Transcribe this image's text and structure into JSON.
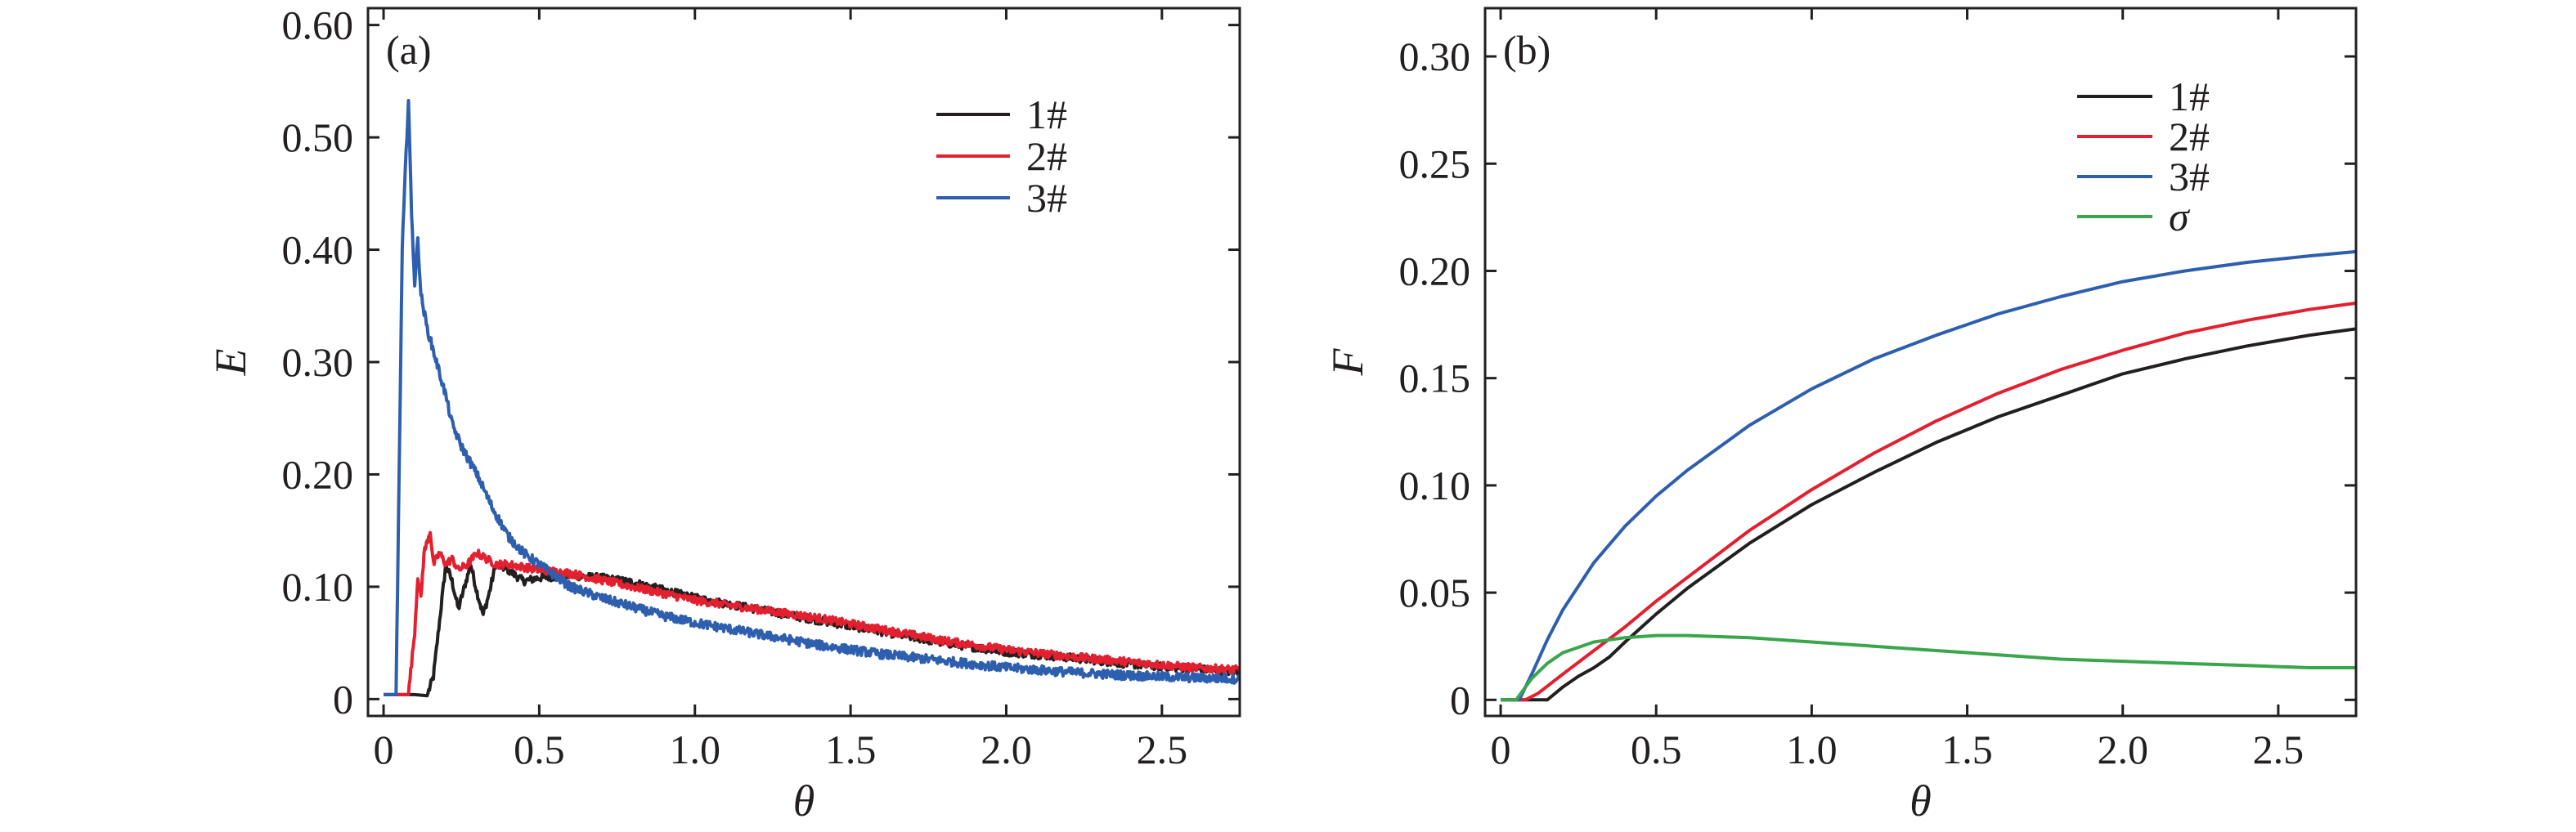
{
  "chart_data": [
    {
      "type": "line",
      "panel_label": "(a)",
      "xlabel": "θ",
      "ylabel": "E",
      "xlim": [
        -0.05,
        2.75
      ],
      "ylim": [
        -0.015,
        0.615
      ],
      "xticks": [
        0,
        0.5,
        1.0,
        1.5,
        2.0,
        2.5
      ],
      "xtick_labels": [
        "0",
        "0.5",
        "1.0",
        "1.5",
        "2.0",
        "2.5"
      ],
      "yticks": [
        0,
        0.1,
        0.2,
        0.3,
        0.4,
        0.5,
        0.6
      ],
      "ytick_labels": [
        "0",
        "0.10",
        "0.20",
        "0.30",
        "0.40",
        "0.50",
        "0.60"
      ],
      "grid": false,
      "legend_position": "top-right",
      "series": [
        {
          "name": "1#",
          "color": "#231f20",
          "noise": 0.0035,
          "points": [
            [
              0,
              0.004
            ],
            [
              0.1,
              0.004
            ],
            [
              0.14,
              0.003
            ],
            [
              0.16,
              0.02
            ],
            [
              0.18,
              0.07
            ],
            [
              0.2,
              0.12
            ],
            [
              0.22,
              0.105
            ],
            [
              0.24,
              0.08
            ],
            [
              0.26,
              0.1
            ],
            [
              0.28,
              0.12
            ],
            [
              0.3,
              0.095
            ],
            [
              0.32,
              0.075
            ],
            [
              0.34,
              0.095
            ],
            [
              0.36,
              0.12
            ],
            [
              0.4,
              0.115
            ],
            [
              0.45,
              0.105
            ],
            [
              0.5,
              0.108
            ],
            [
              0.6,
              0.11
            ],
            [
              0.7,
              0.108
            ],
            [
              0.8,
              0.104
            ],
            [
              0.9,
              0.097
            ],
            [
              1.0,
              0.09
            ],
            [
              1.2,
              0.08
            ],
            [
              1.4,
              0.07
            ],
            [
              1.6,
              0.06
            ],
            [
              1.8,
              0.05
            ],
            [
              2.0,
              0.042
            ],
            [
              2.2,
              0.037
            ],
            [
              2.4,
              0.031
            ],
            [
              2.6,
              0.027
            ],
            [
              2.75,
              0.024
            ]
          ]
        },
        {
          "name": "2#",
          "color": "#e2202f",
          "noise": 0.0035,
          "points": [
            [
              0,
              0.004
            ],
            [
              0.08,
              0.004
            ],
            [
              0.1,
              0.06
            ],
            [
              0.11,
              0.11
            ],
            [
              0.12,
              0.09
            ],
            [
              0.13,
              0.13
            ],
            [
              0.15,
              0.15
            ],
            [
              0.16,
              0.12
            ],
            [
              0.18,
              0.13
            ],
            [
              0.2,
              0.12
            ],
            [
              0.22,
              0.125
            ],
            [
              0.24,
              0.115
            ],
            [
              0.27,
              0.12
            ],
            [
              0.3,
              0.13
            ],
            [
              0.33,
              0.125
            ],
            [
              0.36,
              0.12
            ],
            [
              0.4,
              0.12
            ],
            [
              0.5,
              0.115
            ],
            [
              0.6,
              0.112
            ],
            [
              0.7,
              0.106
            ],
            [
              0.8,
              0.1
            ],
            [
              0.9,
              0.094
            ],
            [
              1.0,
              0.088
            ],
            [
              1.2,
              0.08
            ],
            [
              1.4,
              0.072
            ],
            [
              1.6,
              0.062
            ],
            [
              1.8,
              0.052
            ],
            [
              2.0,
              0.044
            ],
            [
              2.2,
              0.038
            ],
            [
              2.4,
              0.033
            ],
            [
              2.6,
              0.028
            ],
            [
              2.75,
              0.026
            ]
          ]
        },
        {
          "name": "3#",
          "color": "#2e5fae",
          "noise": 0.004,
          "points": [
            [
              0,
              0.004
            ],
            [
              0.04,
              0.004
            ],
            [
              0.05,
              0.2
            ],
            [
              0.06,
              0.4
            ],
            [
              0.07,
              0.47
            ],
            [
              0.08,
              0.535
            ],
            [
              0.09,
              0.43
            ],
            [
              0.1,
              0.37
            ],
            [
              0.11,
              0.41
            ],
            [
              0.12,
              0.36
            ],
            [
              0.14,
              0.33
            ],
            [
              0.16,
              0.31
            ],
            [
              0.18,
              0.29
            ],
            [
              0.2,
              0.27
            ],
            [
              0.22,
              0.245
            ],
            [
              0.25,
              0.225
            ],
            [
              0.3,
              0.2
            ],
            [
              0.35,
              0.17
            ],
            [
              0.4,
              0.145
            ],
            [
              0.45,
              0.13
            ],
            [
              0.5,
              0.12
            ],
            [
              0.55,
              0.11
            ],
            [
              0.6,
              0.1
            ],
            [
              0.7,
              0.09
            ],
            [
              0.8,
              0.082
            ],
            [
              0.9,
              0.074
            ],
            [
              1.0,
              0.068
            ],
            [
              1.2,
              0.058
            ],
            [
              1.4,
              0.048
            ],
            [
              1.6,
              0.04
            ],
            [
              1.8,
              0.034
            ],
            [
              2.0,
              0.028
            ],
            [
              2.2,
              0.024
            ],
            [
              2.4,
              0.021
            ],
            [
              2.6,
              0.019
            ],
            [
              2.75,
              0.018
            ]
          ]
        }
      ]
    },
    {
      "type": "line",
      "panel_label": "(b)",
      "xlabel": "θ",
      "ylabel": "F",
      "xlim": [
        -0.05,
        2.75
      ],
      "ylim": [
        -0.0075,
        0.3225
      ],
      "xticks": [
        0,
        0.5,
        1.0,
        1.5,
        2.0,
        2.5
      ],
      "xtick_labels": [
        "0",
        "0.5",
        "1.0",
        "1.5",
        "2.0",
        "2.5"
      ],
      "yticks": [
        0,
        0.05,
        0.1,
        0.15,
        0.2,
        0.25,
        0.3
      ],
      "ytick_labels": [
        "0",
        "0.05",
        "0.10",
        "0.15",
        "0.20",
        "0.25",
        "0.30"
      ],
      "grid": false,
      "legend_position": "top-right",
      "series": [
        {
          "name": "1#",
          "color": "#231f20",
          "points": [
            [
              0,
              0
            ],
            [
              0.1,
              0
            ],
            [
              0.15,
              0
            ],
            [
              0.2,
              0.006
            ],
            [
              0.25,
              0.011
            ],
            [
              0.3,
              0.015
            ],
            [
              0.35,
              0.02
            ],
            [
              0.4,
              0.027
            ],
            [
              0.5,
              0.04
            ],
            [
              0.6,
              0.052
            ],
            [
              0.8,
              0.073
            ],
            [
              1.0,
              0.091
            ],
            [
              1.2,
              0.106
            ],
            [
              1.4,
              0.12
            ],
            [
              1.6,
              0.132
            ],
            [
              1.8,
              0.142
            ],
            [
              2.0,
              0.152
            ],
            [
              2.2,
              0.159
            ],
            [
              2.4,
              0.165
            ],
            [
              2.6,
              0.17
            ],
            [
              2.75,
              0.173
            ]
          ]
        },
        {
          "name": "2#",
          "color": "#e2202f",
          "points": [
            [
              0,
              0
            ],
            [
              0.08,
              0
            ],
            [
              0.12,
              0.003
            ],
            [
              0.2,
              0.012
            ],
            [
              0.3,
              0.023
            ],
            [
              0.4,
              0.034
            ],
            [
              0.5,
              0.046
            ],
            [
              0.6,
              0.057
            ],
            [
              0.8,
              0.079
            ],
            [
              1.0,
              0.098
            ],
            [
              1.2,
              0.115
            ],
            [
              1.4,
              0.13
            ],
            [
              1.6,
              0.143
            ],
            [
              1.8,
              0.154
            ],
            [
              2.0,
              0.163
            ],
            [
              2.2,
              0.171
            ],
            [
              2.4,
              0.177
            ],
            [
              2.6,
              0.182
            ],
            [
              2.75,
              0.185
            ]
          ]
        },
        {
          "name": "3#",
          "color": "#2e5fae",
          "points": [
            [
              0,
              0
            ],
            [
              0.06,
              0
            ],
            [
              0.1,
              0.012
            ],
            [
              0.15,
              0.028
            ],
            [
              0.2,
              0.042
            ],
            [
              0.3,
              0.064
            ],
            [
              0.4,
              0.081
            ],
            [
              0.5,
              0.095
            ],
            [
              0.6,
              0.107
            ],
            [
              0.8,
              0.128
            ],
            [
              1.0,
              0.145
            ],
            [
              1.2,
              0.159
            ],
            [
              1.4,
              0.17
            ],
            [
              1.6,
              0.18
            ],
            [
              1.8,
              0.188
            ],
            [
              2.0,
              0.195
            ],
            [
              2.2,
              0.2
            ],
            [
              2.4,
              0.204
            ],
            [
              2.6,
              0.207
            ],
            [
              2.75,
              0.209
            ]
          ]
        },
        {
          "name": "σ",
          "color": "#3aa64c",
          "points": [
            [
              0,
              0
            ],
            [
              0.05,
              0
            ],
            [
              0.1,
              0.01
            ],
            [
              0.15,
              0.017
            ],
            [
              0.2,
              0.022
            ],
            [
              0.3,
              0.027
            ],
            [
              0.4,
              0.029
            ],
            [
              0.5,
              0.03
            ],
            [
              0.6,
              0.03
            ],
            [
              0.8,
              0.029
            ],
            [
              1.0,
              0.027
            ],
            [
              1.2,
              0.025
            ],
            [
              1.4,
              0.023
            ],
            [
              1.6,
              0.021
            ],
            [
              1.8,
              0.019
            ],
            [
              2.0,
              0.018
            ],
            [
              2.2,
              0.017
            ],
            [
              2.4,
              0.016
            ],
            [
              2.6,
              0.015
            ],
            [
              2.75,
              0.015
            ]
          ]
        }
      ]
    }
  ]
}
